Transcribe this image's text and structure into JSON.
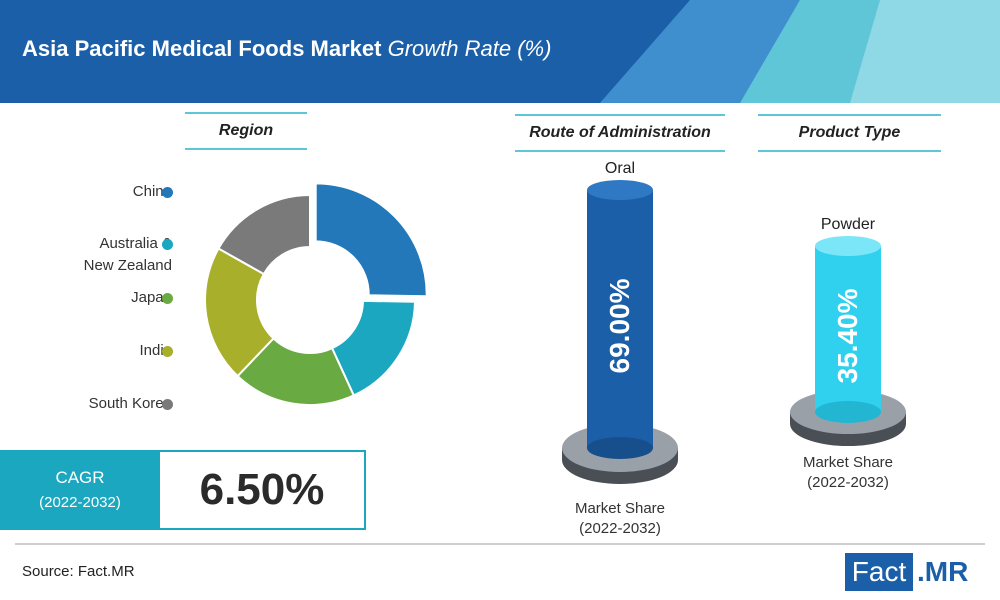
{
  "header": {
    "title_bold": "Asia Pacific Medical Foods Market",
    "title_light": "Growth Rate (%)"
  },
  "colors": {
    "banner_dark": "#1b5fa8",
    "banner_light": "#5fc6d8",
    "china": "#2278b9",
    "anz": "#1aa7bf",
    "japan": "#6aaa43",
    "india": "#a8b02b",
    "south_korea": "#7a7a7a",
    "cyl_oral": "#1b5fa8",
    "cyl_powder": "#2fd1ee"
  },
  "sections": {
    "region": "Region",
    "route": "Route of Administration",
    "product": "Product Type"
  },
  "chart_data": [
    {
      "type": "pie",
      "title": "Region",
      "donut": true,
      "categories": [
        "China",
        "Australia & New Zealand",
        "Japan",
        "India",
        "South Korea"
      ],
      "values": [
        24,
        17,
        18,
        20,
        16
      ],
      "legend_placement": "left"
    },
    {
      "type": "bar",
      "title": "Route of Administration",
      "categories": [
        "Oral"
      ],
      "values": [
        69.0
      ],
      "value_label": "69.00%",
      "xlabel": "Market Share (2022-2032)"
    },
    {
      "type": "bar",
      "title": "Product Type",
      "categories": [
        "Powder"
      ],
      "values": [
        35.4
      ],
      "value_label": "35.40%",
      "xlabel": "Market Share (2022-2032)"
    }
  ],
  "legend": {
    "china": "China",
    "anz_1": "Australia &",
    "anz_2": "New Zealand",
    "japan": "Japan",
    "india": "India",
    "south_korea": "South Korea"
  },
  "cagr": {
    "label": "CAGR",
    "period": "(2022-2032)",
    "value": "6.50%"
  },
  "route": {
    "category": "Oral",
    "value": "69.00%",
    "ms_label": "Market Share",
    "ms_period": "(2022-2032)"
  },
  "product": {
    "category": "Powder",
    "value": "35.40%",
    "ms_label": "Market Share",
    "ms_period": "(2022-2032)"
  },
  "footer": {
    "source": "Source: Fact.MR",
    "logo_fact": "Fact",
    "logo_mr": ".MR"
  }
}
